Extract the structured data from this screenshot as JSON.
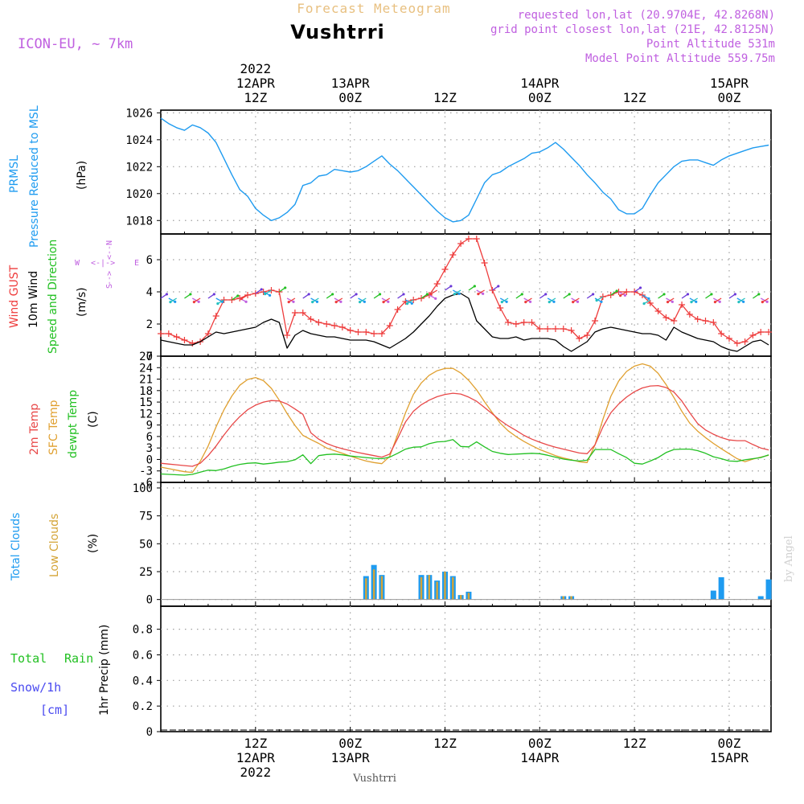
{
  "header": {
    "top_title": "Forecast Meteogram",
    "station": "Vushtrri",
    "model": "ICON-EU, ~ 7km",
    "requested": "requested lon,lat (20.9704E, 42.8268N)",
    "grid_point": "grid point closest lon,lat (21E, 42.8125N)",
    "point_altitude": "Point Altitude 531m",
    "model_altitude": "Model Point Altitude 559.75m",
    "credit": "by Angel",
    "footer_station": "Vushtrri"
  },
  "time_axis": {
    "top_labels": [
      {
        "t": 12,
        "lines": [
          "2022",
          "12APR",
          "12Z"
        ]
      },
      {
        "t": 24,
        "lines": [
          "13APR",
          "00Z"
        ]
      },
      {
        "t": 36,
        "lines": [
          "12Z"
        ]
      },
      {
        "t": 48,
        "lines": [
          "14APR",
          "00Z"
        ]
      },
      {
        "t": 60,
        "lines": [
          "12Z"
        ]
      },
      {
        "t": 72,
        "lines": [
          "15APR",
          "00Z"
        ]
      }
    ],
    "bottom_labels": [
      {
        "t": 12,
        "lines": [
          "12Z",
          "12APR",
          "2022"
        ]
      },
      {
        "t": 24,
        "lines": [
          "00Z",
          "13APR"
        ]
      },
      {
        "t": 36,
        "lines": [
          "12Z"
        ]
      },
      {
        "t": 48,
        "lines": [
          "00Z",
          "14APR"
        ]
      },
      {
        "t": 60,
        "lines": [
          "12Z"
        ]
      },
      {
        "t": 72,
        "lines": [
          "00Z",
          "15APR"
        ]
      }
    ]
  },
  "panel_labels": {
    "pressure": {
      "a": "PRMSL",
      "b": "Pressure Reduced to MSL",
      "unit": "(hPa)"
    },
    "wind": {
      "a": "Wind GUST",
      "b": "10m Wind",
      "c": "Speed and Direction",
      "unit": "(m/s)",
      "compass_n": "N",
      "compass_s": "S",
      "compass_w": "W",
      "compass_e": "E"
    },
    "temp": {
      "a": "2m Temp",
      "b": "SFC Temp",
      "c": "dewpt Temp",
      "unit": "(C)"
    },
    "clouds": {
      "a": "Total Clouds",
      "b": "Low Clouds",
      "unit": "(%)"
    },
    "precip": {
      "a": "Total",
      "a2": "Rain",
      "b": "Snow/1h",
      "c": "[cm]",
      "unit": "1hr Precip (mm)"
    }
  },
  "colors": {
    "pressure": "#1e9bf0",
    "gust": "#ee3c3c",
    "wind": "#000000",
    "temp2m": "#e84848",
    "sfc": "#e0a030",
    "dewpt": "#22c022",
    "total_clouds": "#1e9bf0",
    "low_clouds": "#d4a437",
    "rain": "#22c022",
    "snow": "#4a4af0",
    "model": "#c060e0",
    "title": "#e8c080"
  },
  "chart_data": [
    {
      "type": "line",
      "title": "PRMSL Pressure Reduced to MSL",
      "ylabel": "(hPa)",
      "ylim": [
        1017,
        1026.2
      ],
      "yticks": [
        1018,
        1020,
        1022,
        1024,
        1026
      ],
      "x_hours": [
        0,
        1,
        2,
        3,
        4,
        5,
        6,
        7,
        8,
        9,
        10,
        11,
        12,
        13,
        14,
        15,
        16,
        17,
        18,
        19,
        20,
        21,
        22,
        23,
        24,
        25,
        26,
        27,
        28,
        29,
        30,
        31,
        32,
        33,
        34,
        35,
        36,
        37,
        38,
        39,
        40,
        41,
        42,
        43,
        44,
        45,
        46,
        47,
        48,
        49,
        50,
        51,
        52,
        53,
        54,
        55,
        56,
        57,
        58,
        59,
        60,
        61,
        62,
        63,
        64,
        65,
        66,
        67,
        68,
        69,
        70,
        71,
        72,
        73,
        74,
        75,
        76,
        77
      ],
      "series": [
        {
          "values": [
            1025.6,
            1025.2,
            1024.9,
            1024.7,
            1025.1,
            1024.9,
            1024.5,
            1023.8,
            1022.6,
            1021.4,
            1020.3,
            1019.8,
            1018.9,
            1018.4,
            1018.0,
            1018.2,
            1018.6,
            1019.2,
            1020.6,
            1020.8,
            1021.3,
            1021.4,
            1021.8,
            1021.7,
            1021.6,
            1021.7,
            1022.0,
            1022.4,
            1022.8,
            1022.2,
            1021.7,
            1021.1,
            1020.5,
            1019.9,
            1019.3,
            1018.7,
            1018.2,
            1017.9,
            1018.0,
            1018.4,
            1019.6,
            1020.8,
            1021.4,
            1021.6,
            1022.0,
            1022.3,
            1022.6,
            1023.0,
            1023.1,
            1023.4,
            1023.8,
            1023.3,
            1022.7,
            1022.1,
            1021.4,
            1020.8,
            1020.1,
            1019.6,
            1018.8,
            1018.5,
            1018.5,
            1018.9,
            1019.9,
            1020.8,
            1021.4,
            1022.0,
            1022.4,
            1022.5,
            1022.5,
            1022.3,
            1022.1,
            1022.5,
            1022.8,
            1023.0,
            1023.2,
            1023.4,
            1023.5,
            1023.6
          ]
        }
      ]
    },
    {
      "type": "line",
      "title": "Wind GUST / 10m Wind Speed and Direction",
      "ylabel": "(m/s)",
      "ylim": [
        0,
        7.6
      ],
      "yticks": [
        0,
        2,
        4,
        6
      ],
      "x_hours": [
        0,
        1,
        2,
        3,
        4,
        5,
        6,
        7,
        8,
        9,
        10,
        11,
        12,
        13,
        14,
        15,
        16,
        17,
        18,
        19,
        20,
        21,
        22,
        23,
        24,
        25,
        26,
        27,
        28,
        29,
        30,
        31,
        32,
        33,
        34,
        35,
        36,
        37,
        38,
        39,
        40,
        41,
        42,
        43,
        44,
        45,
        46,
        47,
        48,
        49,
        50,
        51,
        52,
        53,
        54,
        55,
        56,
        57,
        58,
        59,
        60,
        61,
        62,
        63,
        64,
        65,
        66,
        67,
        68,
        69,
        70,
        71,
        72,
        73,
        74,
        75,
        76,
        77
      ],
      "series": [
        {
          "name": "Wind GUST",
          "values": [
            1.4,
            1.4,
            1.2,
            1.0,
            0.8,
            0.9,
            1.4,
            2.5,
            3.5,
            3.5,
            3.6,
            3.8,
            3.9,
            4.0,
            4.1,
            4.0,
            1.3,
            2.7,
            2.7,
            2.3,
            2.1,
            2.0,
            1.9,
            1.8,
            1.6,
            1.5,
            1.5,
            1.4,
            1.4,
            1.9,
            2.9,
            3.4,
            3.5,
            3.6,
            3.8,
            4.5,
            5.4,
            6.3,
            7.0,
            7.3,
            7.3,
            5.8,
            4.1,
            3.0,
            2.1,
            2.0,
            2.1,
            2.1,
            1.7,
            1.7,
            1.7,
            1.7,
            1.6,
            1.1,
            1.3,
            2.2,
            3.7,
            3.8,
            4.0,
            4.0,
            4.0,
            3.8,
            3.3,
            2.8,
            2.4,
            2.2,
            3.2,
            2.6,
            2.3,
            2.2,
            2.1,
            1.4,
            1.1,
            0.8,
            0.9,
            1.3,
            1.5,
            1.5
          ]
        },
        {
          "name": "10m Wind",
          "values": [
            1.0,
            0.9,
            0.8,
            0.7,
            0.7,
            0.9,
            1.2,
            1.5,
            1.4,
            1.5,
            1.6,
            1.7,
            1.8,
            2.1,
            2.3,
            2.1,
            0.5,
            1.3,
            1.6,
            1.4,
            1.3,
            1.2,
            1.2,
            1.1,
            1.0,
            1.0,
            1.0,
            0.9,
            0.7,
            0.5,
            0.8,
            1.1,
            1.5,
            2.0,
            2.5,
            3.1,
            3.6,
            3.8,
            3.9,
            3.6,
            2.2,
            1.7,
            1.2,
            1.1,
            1.1,
            1.2,
            1.0,
            1.1,
            1.1,
            1.1,
            1.0,
            0.6,
            0.3,
            0.6,
            0.9,
            1.5,
            1.7,
            1.8,
            1.7,
            1.6,
            1.5,
            1.4,
            1.4,
            1.3,
            1.0,
            1.8,
            1.5,
            1.3,
            1.1,
            1.0,
            0.9,
            0.6,
            0.4,
            0.3,
            0.6,
            0.9,
            1.0,
            0.7
          ]
        }
      ]
    },
    {
      "type": "line",
      "title": "2m Temp / SFC Temp / dewpt Temp",
      "ylabel": "(C)",
      "ylim": [
        -6,
        27
      ],
      "yticks": [
        -6,
        -3,
        0,
        3,
        6,
        9,
        12,
        15,
        18,
        21,
        24,
        27
      ],
      "x_hours": [
        0,
        1,
        2,
        3,
        4,
        5,
        6,
        7,
        8,
        9,
        10,
        11,
        12,
        13,
        14,
        15,
        16,
        17,
        18,
        19,
        20,
        21,
        22,
        23,
        24,
        25,
        26,
        27,
        28,
        29,
        30,
        31,
        32,
        33,
        34,
        35,
        36,
        37,
        38,
        39,
        40,
        41,
        42,
        43,
        44,
        45,
        46,
        47,
        48,
        49,
        50,
        51,
        52,
        53,
        54,
        55,
        56,
        57,
        58,
        59,
        60,
        61,
        62,
        63,
        64,
        65,
        66,
        67,
        68,
        69,
        70,
        71,
        72,
        73,
        74,
        75,
        76,
        77
      ],
      "series": [
        {
          "name": "2m Temp",
          "values": [
            -1.0,
            -1.2,
            -1.4,
            -1.6,
            -1.8,
            -1.0,
            1.0,
            3.5,
            6.4,
            9.0,
            11.2,
            13.0,
            14.2,
            15.0,
            15.4,
            15.3,
            14.5,
            13.2,
            11.8,
            7.0,
            5.3,
            4.2,
            3.4,
            2.8,
            2.3,
            1.8,
            1.4,
            1.0,
            0.6,
            1.4,
            5.5,
            9.8,
            12.6,
            14.3,
            15.5,
            16.4,
            17.0,
            17.3,
            17.1,
            16.3,
            15.2,
            13.6,
            11.9,
            10.2,
            8.8,
            7.6,
            6.3,
            5.3,
            4.5,
            3.8,
            3.2,
            2.7,
            2.2,
            1.7,
            1.5,
            3.8,
            8.5,
            12.2,
            14.5,
            16.3,
            17.7,
            18.7,
            19.2,
            19.3,
            18.8,
            17.6,
            15.3,
            12.2,
            9.4,
            7.7,
            6.6,
            5.7,
            5.1,
            4.9,
            4.9,
            3.9,
            3.0,
            2.5
          ]
        },
        {
          "name": "SFC Temp",
          "values": [
            -2.0,
            -2.4,
            -2.8,
            -3.2,
            -3.4,
            -0.5,
            3.5,
            8.5,
            13.0,
            16.6,
            19.4,
            20.9,
            21.4,
            20.6,
            18.6,
            15.5,
            12.0,
            8.9,
            6.3,
            5.2,
            4.2,
            3.0,
            2.3,
            1.6,
            0.9,
            0.2,
            -0.4,
            -0.8,
            -1.1,
            0.8,
            6.5,
            12.2,
            17.0,
            20.0,
            22.0,
            23.2,
            23.8,
            23.8,
            22.6,
            20.7,
            18.2,
            15.1,
            12.2,
            9.5,
            7.5,
            6.0,
            4.7,
            3.6,
            2.6,
            1.8,
            1.0,
            0.4,
            -0.1,
            -0.6,
            -0.8,
            3.8,
            10.5,
            16.5,
            20.5,
            23.0,
            24.4,
            25.0,
            24.4,
            22.5,
            19.6,
            16.2,
            12.6,
            9.5,
            7.4,
            5.7,
            4.2,
            2.8,
            1.5,
            0.2,
            -0.6,
            0.1,
            0.6,
            1.1
          ]
        },
        {
          "name": "dewpt Temp",
          "values": [
            -3.8,
            -3.9,
            -4.0,
            -4.1,
            -3.9,
            -3.3,
            -2.8,
            -2.9,
            -2.5,
            -1.8,
            -1.3,
            -1.0,
            -0.9,
            -1.2,
            -1.0,
            -0.7,
            -0.6,
            -0.1,
            1.2,
            -1.1,
            1.0,
            1.3,
            1.4,
            1.2,
            0.9,
            0.7,
            0.5,
            0.3,
            0.2,
            0.6,
            1.6,
            2.7,
            3.2,
            3.3,
            4.1,
            4.6,
            4.7,
            5.2,
            3.4,
            3.3,
            4.6,
            3.3,
            2.1,
            1.6,
            1.3,
            1.4,
            1.5,
            1.6,
            1.5,
            1.1,
            0.6,
            0.1,
            -0.2,
            -0.4,
            -0.2,
            2.6,
            2.6,
            2.6,
            1.5,
            0.5,
            -1.0,
            -1.2,
            -0.4,
            0.5,
            1.8,
            2.6,
            2.7,
            2.7,
            2.3,
            1.6,
            0.7,
            0.2,
            -0.4,
            -0.5,
            -0.1,
            0.2,
            0.5,
            1.2
          ]
        }
      ]
    },
    {
      "type": "bar",
      "title": "Total Clouds / Low Clouds",
      "ylabel": "(%)",
      "ylim": [
        -6,
        105
      ],
      "yticks": [
        0,
        25,
        50,
        75,
        100
      ],
      "x_hours": [
        26,
        27,
        28,
        33,
        34,
        35,
        36,
        37,
        38,
        39,
        40,
        51,
        52,
        70,
        71,
        76,
        77
      ],
      "series": [
        {
          "name": "Total Clouds",
          "values": [
            21,
            31,
            22,
            22,
            22,
            17,
            25,
            21,
            4,
            7,
            0,
            3,
            3,
            8,
            20,
            3,
            18
          ]
        },
        {
          "name": "Low Clouds",
          "values": [
            19,
            27,
            21,
            20,
            22,
            16,
            25,
            20,
            4,
            6,
            0,
            3,
            3,
            0,
            0,
            0,
            0
          ]
        }
      ]
    },
    {
      "type": "bar",
      "title": "Total Rain / Snow/1h",
      "ylabel": "1hr Precip (mm)",
      "ylim": [
        0,
        0.98
      ],
      "yticks": [
        0,
        0.2,
        0.4,
        0.6,
        0.8
      ],
      "series": [
        {
          "name": "Total Rain",
          "values": []
        },
        {
          "name": "Snow/1h",
          "values": []
        }
      ]
    }
  ]
}
